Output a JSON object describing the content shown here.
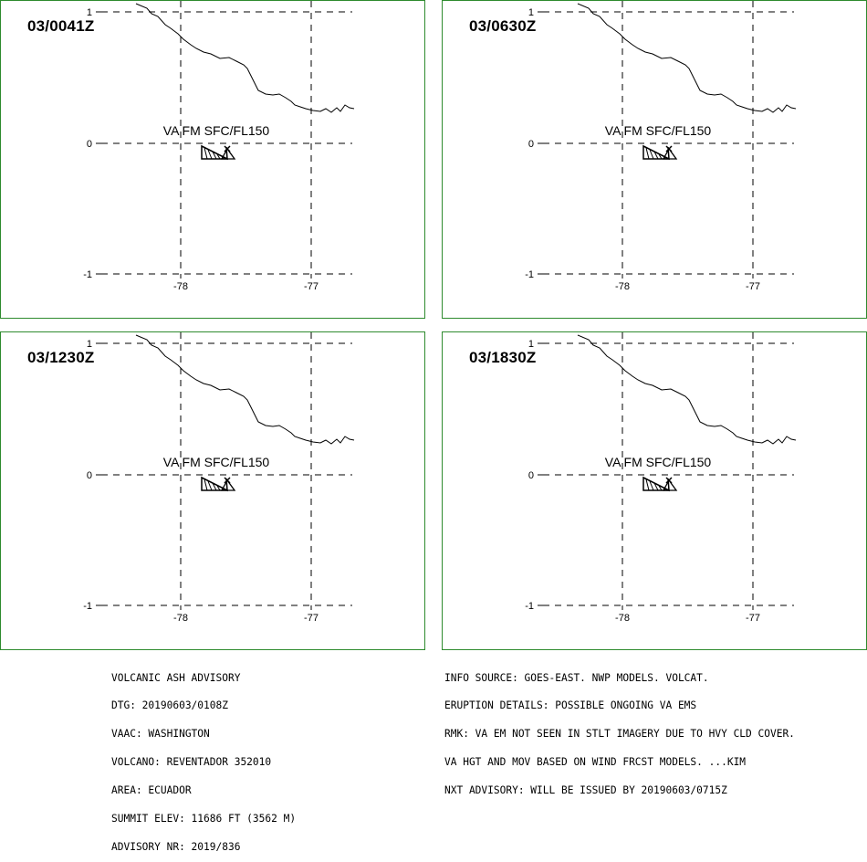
{
  "panels": [
    {
      "time": "03/0041Z",
      "va_label": "VA FM SFC/FL150"
    },
    {
      "time": "03/0630Z",
      "va_label": "VA FM SFC/FL150"
    },
    {
      "time": "03/1230Z",
      "va_label": "VA FM SFC/FL150"
    },
    {
      "time": "03/1830Z",
      "va_label": "VA FM SFC/FL150"
    }
  ],
  "axes": {
    "lat_labels": [
      "1",
      "0",
      "-1"
    ],
    "lon_labels": [
      "-78",
      "-77"
    ]
  },
  "advisory": {
    "left_lines": [
      "VOLCANIC ASH ADVISORY",
      "DTG: 20190603/0108Z",
      "VAAC: WASHINGTON",
      "VOLCANO: REVENTADOR 352010",
      "AREA: ECUADOR",
      "SUMMIT ELEV: 11686 FT (3562 M)",
      "ADVISORY NR: 2019/836"
    ],
    "right_lines": [
      "INFO SOURCE: GOES-EAST. NWP MODELS. VOLCAT.",
      "ERUPTION DETAILS: POSSIBLE ONGOING VA EMS",
      "RMK: VA EM NOT SEEN IN STLT IMAGERY DUE TO HVY CLD COVER.",
      "VA HGT AND MOV BASED ON WIND FRCST MODELS. ...KIM",
      "NXT ADVISORY: WILL BE ISSUED BY 20190603/0715Z"
    ]
  },
  "colors": {
    "panel_border": "#2e8b2e",
    "ink": "#000000"
  }
}
